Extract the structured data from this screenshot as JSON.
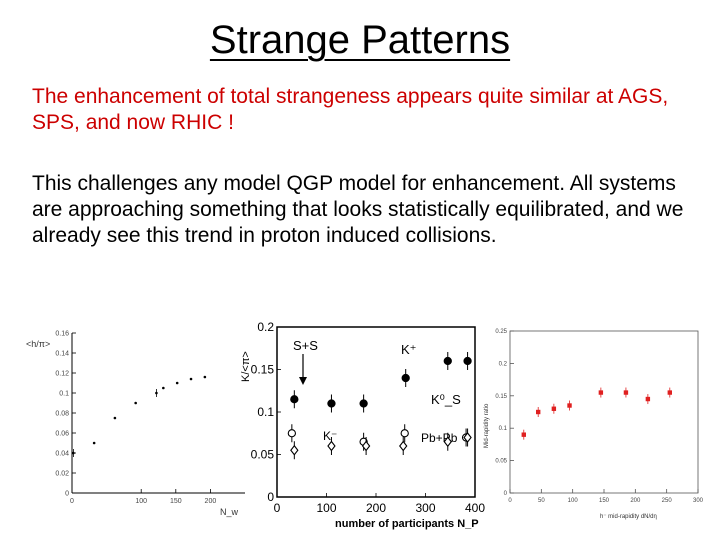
{
  "slide": {
    "title": "Strange Patterns",
    "para1": "The enhancement of total strangeness appears quite similar at AGS, SPS, and now RHIC !",
    "para2": "This challenges any model QGP model for enhancement.  All systems are approaching something that looks statistically equilibrated, and we already see this trend in proton induced collisions.",
    "colors": {
      "accent": "#cc0000",
      "text": "#000000"
    }
  },
  "chart_data": [
    {
      "type": "scatter",
      "title": "",
      "xlabel": "N_w",
      "ylabel": "<h/π>",
      "xlim": [
        0,
        250
      ],
      "ylim": [
        0,
        0.16
      ],
      "xticks": [
        "0",
        "100",
        "150",
        "200"
      ],
      "yticks": [
        "0",
        "0.02",
        "0.04",
        "0.06",
        "0.08",
        "0.1",
        "0.12",
        "0.14",
        "0.16"
      ],
      "series": [
        {
          "x": [
            2,
            32,
            62,
            92,
            122,
            132,
            152,
            172,
            192
          ],
          "y": [
            0.04,
            0.05,
            0.075,
            0.09,
            0.1,
            0.105,
            0.11,
            0.114,
            0.116
          ]
        }
      ]
    },
    {
      "type": "scatter",
      "title": "",
      "xlabel": "number of participants N_P",
      "ylabel": "K/<π>",
      "xlim": [
        0,
        400
      ],
      "ylim": [
        0,
        0.2
      ],
      "xticks": [
        "0",
        "100",
        "200",
        "300",
        "400"
      ],
      "yticks": [
        "0",
        "0.05",
        "0.1",
        "0.15",
        "0.2"
      ],
      "annotations": [
        "S+S",
        "K⁺",
        "K⁰_S",
        "K⁻",
        "Pb+Pb"
      ],
      "series": [
        {
          "name": "K⁺",
          "x": [
            35,
            110,
            175,
            260,
            345,
            385
          ],
          "y": [
            0.115,
            0.11,
            0.11,
            0.14,
            0.16,
            0.16
          ]
        },
        {
          "name": "K⁰_S",
          "x": [
            30,
            175,
            258,
            382
          ],
          "y": [
            0.075,
            0.065,
            0.075,
            0.07
          ]
        },
        {
          "name": "K⁻",
          "x": [
            35,
            110,
            180,
            255,
            345,
            385
          ],
          "y": [
            0.055,
            0.06,
            0.06,
            0.06,
            0.065,
            0.07
          ]
        }
      ]
    },
    {
      "type": "scatter",
      "title": "",
      "xlabel": "h⁻ mid-rapidity dN/dη",
      "ylabel": "Mid-rapidity ratio",
      "xlim": [
        0,
        300
      ],
      "ylim": [
        0,
        0.25
      ],
      "xticks": [
        "0",
        "50",
        "100",
        "150",
        "200",
        "250",
        "300"
      ],
      "yticks": [
        "0",
        "0.05",
        "0.1",
        "0.15",
        "0.2",
        "0.25"
      ],
      "colors": {
        "points": "#e02020"
      },
      "series": [
        {
          "x": [
            22,
            45,
            70,
            95,
            145,
            185,
            220,
            255
          ],
          "y": [
            0.09,
            0.125,
            0.13,
            0.135,
            0.155,
            0.155,
            0.145,
            0.155
          ]
        }
      ]
    }
  ]
}
